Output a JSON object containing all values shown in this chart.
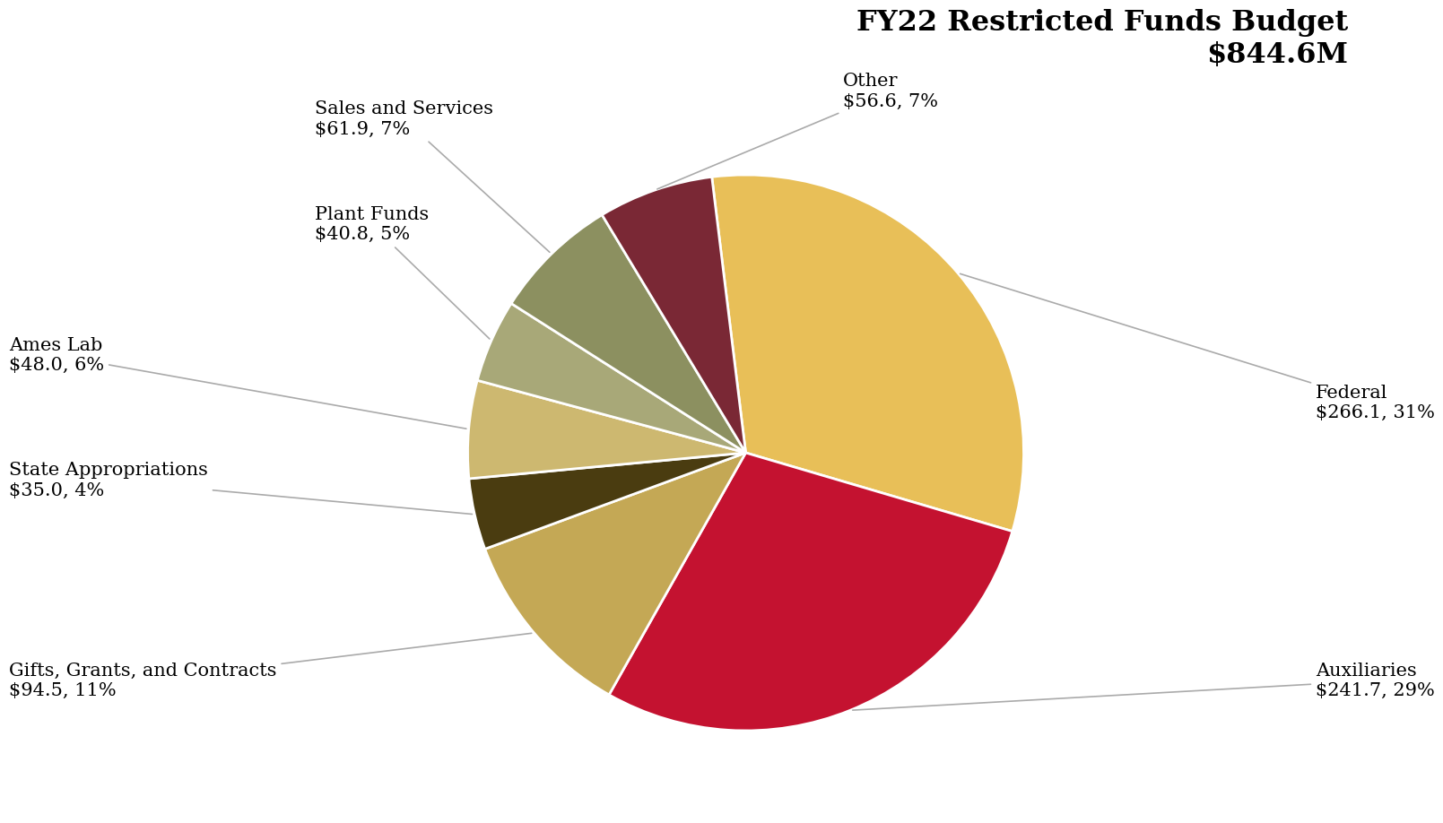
{
  "title_line1": "FY22 Restricted Funds Budget",
  "title_line2": "$844.6M",
  "title_fontsize": 23,
  "slices": [
    {
      "label": "Federal",
      "value": 266.1,
      "pct": 31,
      "color": "#E8BF58"
    },
    {
      "label": "Auxiliaries",
      "value": 241.7,
      "pct": 29,
      "color": "#C41230"
    },
    {
      "label": "Gifts, Grants, and Contracts",
      "value": 94.5,
      "pct": 11,
      "color": "#C4A855"
    },
    {
      "label": "State Appropriations",
      "value": 35.0,
      "pct": 4,
      "color": "#4A3C10"
    },
    {
      "label": "Ames Lab",
      "value": 48.0,
      "pct": 6,
      "color": "#CDB870"
    },
    {
      "label": "Plant Funds",
      "value": 40.8,
      "pct": 5,
      "color": "#A8A878"
    },
    {
      "label": "Sales and Services",
      "value": 61.9,
      "pct": 7,
      "color": "#8C9060"
    },
    {
      "label": "Other",
      "value": 56.6,
      "pct": 7,
      "color": "#7A2835"
    }
  ],
  "background_color": "#FFFFFF",
  "font_family": "serif",
  "label_fontsize": 15,
  "connector_color": "#AAAAAA",
  "startangle": 97
}
